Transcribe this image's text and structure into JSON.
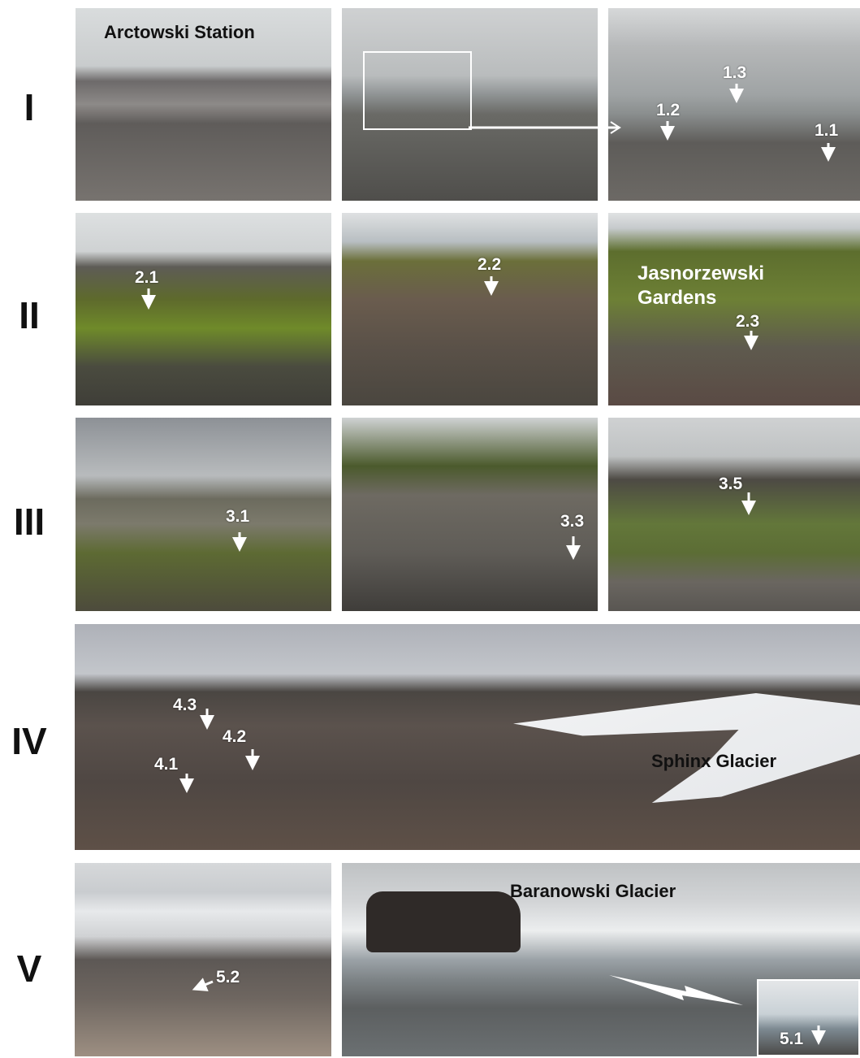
{
  "rows": [
    {
      "label": "I",
      "captions": [
        "Arctowski Station"
      ],
      "markers": [
        "1.3",
        "1.2",
        "1.1"
      ]
    },
    {
      "label": "II",
      "captions": [
        "Jasnorzewski Gardens"
      ],
      "markers": [
        "2.1",
        "2.2",
        "2.3"
      ]
    },
    {
      "label": "III",
      "markers": [
        "3.1",
        "3.3",
        "3.5"
      ]
    },
    {
      "label": "IV",
      "captions": [
        "Sphinx Glacier"
      ],
      "markers": [
        "4.3",
        "4.2",
        "4.1"
      ]
    },
    {
      "label": "V",
      "captions": [
        "Baranowski Glacier"
      ],
      "markers": [
        "5.2",
        "5.1"
      ]
    }
  ]
}
